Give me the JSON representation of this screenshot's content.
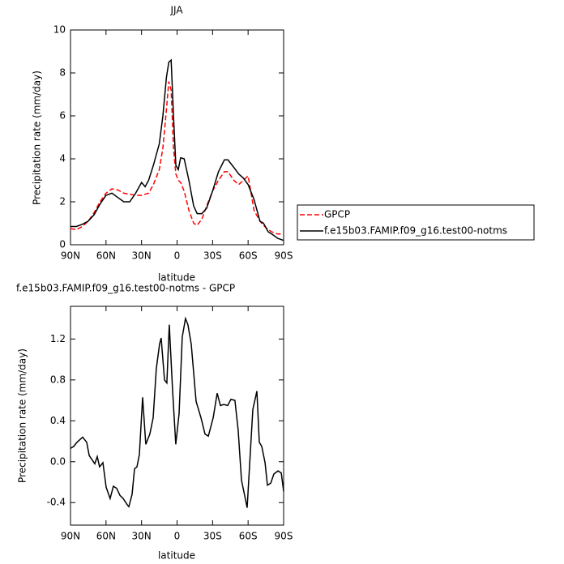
{
  "chart_data": [
    {
      "type": "line",
      "title": "JJA",
      "xlabel": "latitude",
      "ylabel": "Precipitation rate (mm/day)",
      "x": [
        90,
        85,
        80,
        75,
        70,
        65,
        60,
        55,
        50,
        45,
        40,
        35,
        30,
        27,
        24,
        20,
        15,
        12,
        9,
        7,
        5,
        3,
        1,
        -1,
        -3,
        -6,
        -10,
        -14,
        -17,
        -21,
        -25,
        -30,
        -35,
        -40,
        -43,
        -48,
        -52,
        -56,
        -60,
        -65,
        -70,
        -73,
        -77,
        -80,
        -85,
        -90
      ],
      "series": [
        {
          "name": "GPCP",
          "color": "#ff0000",
          "linestyle": "dashed",
          "values": [
            0.75,
            0.7,
            0.85,
            1.1,
            1.5,
            2.0,
            2.4,
            2.6,
            2.55,
            2.4,
            2.35,
            2.3,
            2.3,
            2.35,
            2.4,
            2.8,
            3.5,
            4.5,
            6.3,
            7.6,
            7.2,
            4.5,
            3.3,
            3.0,
            2.9,
            2.5,
            1.6,
            1.0,
            0.9,
            1.2,
            1.8,
            2.5,
            3.0,
            3.4,
            3.4,
            3.0,
            2.8,
            3.0,
            3.2,
            1.6,
            1.1,
            0.9,
            0.7,
            0.6,
            0.5,
            0.5
          ]
        },
        {
          "name": "f.e15b03.FAMIP.f09_g16.test00-notms",
          "color": "#000000",
          "linestyle": "solid",
          "values": [
            0.85,
            0.85,
            0.95,
            1.1,
            1.4,
            1.9,
            2.3,
            2.4,
            2.2,
            2.0,
            2.0,
            2.4,
            2.9,
            2.7,
            3.0,
            3.7,
            4.7,
            6.0,
            7.8,
            8.5,
            8.6,
            6.0,
            3.7,
            3.5,
            4.05,
            4.0,
            3.0,
            1.8,
            1.45,
            1.45,
            1.7,
            2.5,
            3.4,
            3.95,
            3.95,
            3.6,
            3.3,
            3.1,
            2.8,
            2.1,
            1.1,
            1.0,
            0.6,
            0.5,
            0.3,
            0.2
          ]
        }
      ],
      "xlim": [
        90,
        -90
      ],
      "xticks": [
        {
          "value": 90,
          "label": "90N"
        },
        {
          "value": 60,
          "label": "60N"
        },
        {
          "value": 30,
          "label": "30N"
        },
        0,
        {
          "value": -30,
          "label": "30S"
        },
        {
          "value": -60,
          "label": "60S"
        },
        {
          "value": -90,
          "label": "90S"
        }
      ],
      "ylim": [
        0,
        10
      ],
      "yticks": [
        0,
        2,
        4,
        6,
        8,
        10
      ],
      "legend": "right"
    },
    {
      "type": "line",
      "title": "f.e15b03.FAMIP.f09_g16.test00-notms - GPCP",
      "xlabel": "latitude",
      "ylabel": "Precipitation rate (mm/day)",
      "x": [
        90,
        87.3,
        84.5,
        79.7,
        76.3,
        74.2,
        69.5,
        67.4,
        65.4,
        62.6,
        59.9,
        56.5,
        53.8,
        51,
        48.2,
        45.5,
        42.1,
        40.7,
        38,
        35.9,
        33.9,
        31.8,
        29.1,
        26.4,
        23,
        20.2,
        17.5,
        14.8,
        13.4,
        10.6,
        8.6,
        6.6,
        3.8,
        1.1,
        -1.7,
        -4.4,
        -7.1,
        -9.2,
        -12,
        -16.1,
        -20.2,
        -23.6,
        -26.4,
        -30.5,
        -33.9,
        -36.6,
        -39.4,
        -42.8,
        -45.5,
        -48.9,
        -51.6,
        -54.4,
        -57.1,
        -59.2,
        -61.2,
        -64,
        -67.4,
        -69.5,
        -71.5,
        -74.3,
        -76.3,
        -79.1,
        -81.8,
        -85.3,
        -88,
        -90
      ],
      "values": [
        0.13,
        0.15,
        0.19,
        0.24,
        0.19,
        0.06,
        -0.02,
        0.05,
        -0.05,
        -0.01,
        -0.25,
        -0.36,
        -0.24,
        -0.26,
        -0.33,
        -0.36,
        -0.42,
        -0.44,
        -0.32,
        -0.07,
        -0.05,
        0.07,
        0.63,
        0.17,
        0.27,
        0.43,
        0.91,
        1.15,
        1.21,
        0.8,
        0.77,
        1.34,
        0.71,
        0.17,
        0.47,
        1.22,
        1.4,
        1.34,
        1.15,
        0.59,
        0.43,
        0.27,
        0.25,
        0.43,
        0.67,
        0.55,
        0.56,
        0.55,
        0.61,
        0.6,
        0.31,
        -0.18,
        -0.33,
        -0.45,
        -0.05,
        0.51,
        0.69,
        0.19,
        0.15,
        -0.01,
        -0.23,
        -0.21,
        -0.12,
        -0.09,
        -0.11,
        -0.29
      ],
      "color": "#000000",
      "xlim": [
        90,
        -90
      ],
      "xticks": [
        {
          "value": 90,
          "label": "90N"
        },
        {
          "value": 60,
          "label": "60N"
        },
        {
          "value": 30,
          "label": "30N"
        },
        0,
        {
          "value": -30,
          "label": "30S"
        },
        {
          "value": -60,
          "label": "60S"
        },
        {
          "value": -90,
          "label": "90S"
        }
      ],
      "ylim": [
        -0.62,
        1.52
      ],
      "yticks": [
        -0.4,
        {
          "value": 0,
          "label": "0.0"
        },
        0.4,
        0.8,
        1.2
      ]
    }
  ]
}
